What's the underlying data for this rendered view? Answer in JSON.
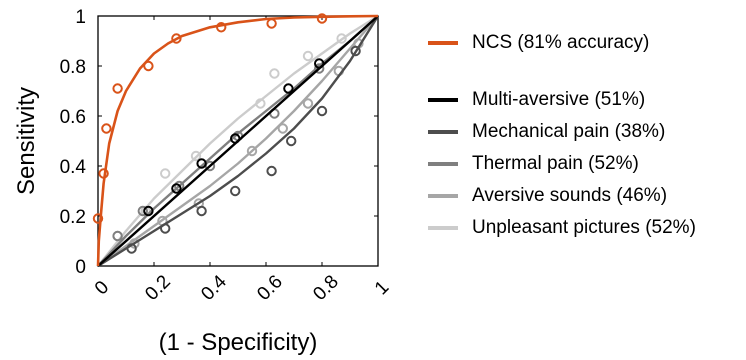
{
  "chart_data": {
    "type": "line",
    "xlabel": "(1 - Specificity)",
    "ylabel": "Sensitivity",
    "xlim": [
      0,
      1
    ],
    "ylim": [
      0,
      1
    ],
    "x_ticks": [
      "0",
      "0.2",
      "0.4",
      "0.6",
      "0.8",
      "1"
    ],
    "y_ticks": [
      "0",
      "0.2",
      "0.4",
      "0.6",
      "0.8",
      "1"
    ],
    "grid": false,
    "legend_position": "right",
    "series": [
      {
        "name": "NCS (81% accuracy)",
        "color": "#d95319",
        "curve": [
          [
            0,
            0
          ],
          [
            0.003,
            0.1
          ],
          [
            0.01,
            0.2
          ],
          [
            0.02,
            0.33
          ],
          [
            0.04,
            0.49
          ],
          [
            0.07,
            0.62
          ],
          [
            0.1,
            0.7
          ],
          [
            0.15,
            0.79
          ],
          [
            0.2,
            0.85
          ],
          [
            0.25,
            0.89
          ],
          [
            0.3,
            0.92
          ],
          [
            0.4,
            0.955
          ],
          [
            0.5,
            0.975
          ],
          [
            0.6,
            0.988
          ],
          [
            0.7,
            0.994
          ],
          [
            0.8,
            0.997
          ],
          [
            0.9,
            0.999
          ],
          [
            1,
            1
          ]
        ],
        "points": [
          [
            0.0,
            0.19
          ],
          [
            0.02,
            0.37
          ],
          [
            0.03,
            0.55
          ],
          [
            0.07,
            0.71
          ],
          [
            0.18,
            0.8
          ],
          [
            0.28,
            0.91
          ],
          [
            0.44,
            0.955
          ],
          [
            0.62,
            0.97
          ],
          [
            0.8,
            0.99
          ]
        ]
      },
      {
        "name": "Multi-aversive (51%)",
        "color": "#000000",
        "curve": [
          [
            0,
            0
          ],
          [
            1,
            1
          ]
        ],
        "points": [
          [
            0.18,
            0.22
          ],
          [
            0.28,
            0.31
          ],
          [
            0.37,
            0.41
          ],
          [
            0.49,
            0.51
          ],
          [
            0.68,
            0.71
          ],
          [
            0.79,
            0.81
          ]
        ]
      },
      {
        "name": "Mechanical pain (38%)",
        "color": "#4d4d4d",
        "curve": [
          [
            0,
            0
          ],
          [
            0.1,
            0.07
          ],
          [
            0.2,
            0.14
          ],
          [
            0.3,
            0.21
          ],
          [
            0.4,
            0.28
          ],
          [
            0.5,
            0.36
          ],
          [
            0.6,
            0.45
          ],
          [
            0.7,
            0.55
          ],
          [
            0.8,
            0.67
          ],
          [
            0.9,
            0.82
          ],
          [
            1,
            1
          ]
        ],
        "points": [
          [
            0.12,
            0.07
          ],
          [
            0.24,
            0.15
          ],
          [
            0.37,
            0.22
          ],
          [
            0.49,
            0.3
          ],
          [
            0.62,
            0.38
          ],
          [
            0.69,
            0.5
          ],
          [
            0.8,
            0.62
          ],
          [
            0.92,
            0.86
          ]
        ]
      },
      {
        "name": "Thermal pain (52%)",
        "color": "#7f7f7f",
        "curve": [
          [
            0,
            0
          ],
          [
            0.1,
            0.12
          ],
          [
            0.2,
            0.23
          ],
          [
            0.3,
            0.33
          ],
          [
            0.4,
            0.43
          ],
          [
            0.5,
            0.53
          ],
          [
            0.6,
            0.62
          ],
          [
            0.7,
            0.71
          ],
          [
            0.8,
            0.81
          ],
          [
            0.9,
            0.9
          ],
          [
            1,
            1
          ]
        ],
        "points": [
          [
            0.07,
            0.12
          ],
          [
            0.16,
            0.22
          ],
          [
            0.29,
            0.32
          ],
          [
            0.4,
            0.4
          ],
          [
            0.5,
            0.52
          ],
          [
            0.63,
            0.61
          ],
          [
            0.79,
            0.79
          ]
        ]
      },
      {
        "name": "Aversive sounds (46%)",
        "color": "#a6a6a6",
        "curve": [
          [
            0,
            0
          ],
          [
            0.1,
            0.08
          ],
          [
            0.2,
            0.16
          ],
          [
            0.3,
            0.24
          ],
          [
            0.4,
            0.32
          ],
          [
            0.5,
            0.41
          ],
          [
            0.6,
            0.51
          ],
          [
            0.7,
            0.62
          ],
          [
            0.8,
            0.74
          ],
          [
            0.9,
            0.87
          ],
          [
            1,
            1
          ]
        ],
        "points": [
          [
            0.13,
            0.09
          ],
          [
            0.23,
            0.18
          ],
          [
            0.36,
            0.25
          ],
          [
            0.55,
            0.46
          ],
          [
            0.66,
            0.55
          ],
          [
            0.75,
            0.65
          ],
          [
            0.86,
            0.78
          ],
          [
            0.93,
            0.89
          ]
        ]
      },
      {
        "name": "Unpleasant pictures (52%)",
        "color": "#cccccc",
        "curve": [
          [
            0,
            0
          ],
          [
            0.1,
            0.14
          ],
          [
            0.2,
            0.27
          ],
          [
            0.3,
            0.38
          ],
          [
            0.4,
            0.49
          ],
          [
            0.5,
            0.59
          ],
          [
            0.6,
            0.68
          ],
          [
            0.7,
            0.77
          ],
          [
            0.8,
            0.85
          ],
          [
            0.9,
            0.93
          ],
          [
            1,
            1
          ]
        ],
        "points": [
          [
            0.07,
            0.12
          ],
          [
            0.17,
            0.22
          ],
          [
            0.24,
            0.37
          ],
          [
            0.35,
            0.44
          ],
          [
            0.58,
            0.65
          ],
          [
            0.63,
            0.77
          ],
          [
            0.75,
            0.84
          ],
          [
            0.87,
            0.91
          ]
        ]
      }
    ]
  }
}
